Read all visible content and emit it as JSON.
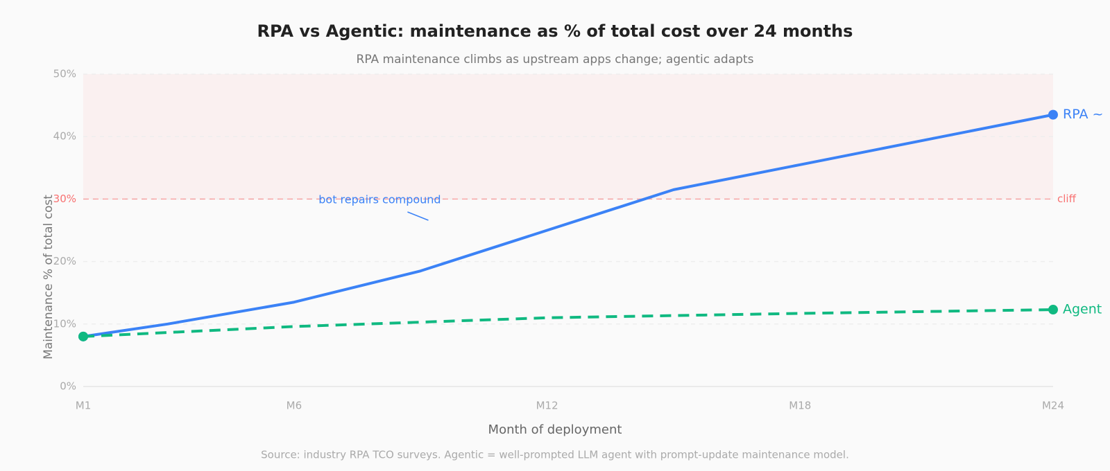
{
  "chart_data": {
    "type": "line",
    "title": "RPA vs Agentic: maintenance as % of total cost over 24 months",
    "subtitle": "RPA maintenance climbs as upstream apps change; agentic adapts",
    "x_label": "Month of deployment",
    "y_label": "Maintenance % of total cost",
    "source": "Source: industry RPA TCO surveys. Agentic = well-prompted LLM agent with prompt-update maintenance model.",
    "xlim": [
      1,
      24
    ],
    "xticks": [
      {
        "value": 1,
        "label": "M1"
      },
      {
        "value": 6,
        "label": "M6"
      },
      {
        "value": 12,
        "label": "M12"
      },
      {
        "value": 18,
        "label": "M18"
      },
      {
        "value": 24,
        "label": "M24"
      }
    ],
    "ylim": [
      0,
      50
    ],
    "yticks": [
      {
        "value": 0,
        "label": "0%"
      },
      {
        "value": 10,
        "label": "10%"
      },
      {
        "value": 20,
        "label": "20%"
      },
      {
        "value": 30,
        "label": "30%"
      },
      {
        "value": 40,
        "label": "40%"
      },
      {
        "value": 50,
        "label": "50%"
      }
    ],
    "grid": true,
    "threshold": {
      "value": 30,
      "label": "cliff",
      "color": "#f87171"
    },
    "annotation": "bot repairs compound",
    "series": [
      {
        "name": "RPA ~",
        "color": "#3b82f6",
        "dashed": false,
        "x": [
          1,
          3,
          6,
          9,
          12,
          15,
          18,
          21,
          24
        ],
        "values": [
          8,
          10,
          13.5,
          18.5,
          25,
          31.5,
          35.5,
          39.5,
          43.5
        ]
      },
      {
        "name": "Agent",
        "color": "#10b981",
        "dashed": true,
        "x": [
          1,
          6,
          12,
          18,
          24
        ],
        "values": [
          8,
          9.6,
          11,
          11.7,
          12.3
        ]
      }
    ]
  }
}
